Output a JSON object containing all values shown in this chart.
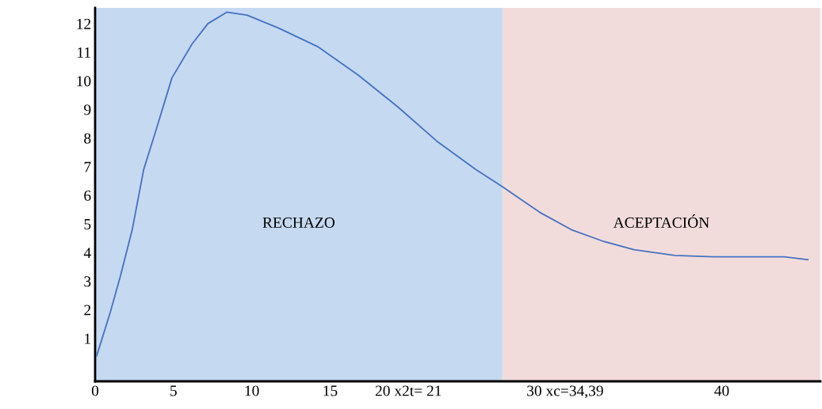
{
  "chart_data": {
    "type": "line",
    "series": [
      {
        "color": "#4472c4",
        "x": [
          0.1,
          0.96,
          1.6,
          2.37,
          3.1,
          3.9,
          4.9,
          6.2,
          7.2,
          8.4,
          9.7,
          11.7,
          14.2,
          16.8,
          19.3,
          21.8,
          24.3,
          26,
          28.4,
          30.4,
          32.4,
          34.4,
          37,
          39.5,
          42,
          44,
          45.5
        ],
        "values": [
          0.39,
          1.9,
          3.15,
          4.8,
          6.9,
          8.3,
          10.1,
          11.3,
          12.0,
          12.4,
          12.3,
          11.85,
          11.2,
          10.2,
          9.1,
          7.9,
          6.9,
          6.3,
          5.4,
          4.8,
          4.4,
          4.1,
          3.9,
          3.85,
          3.85,
          3.85,
          3.75
        ]
      }
    ],
    "xlim": [
      0,
      46.3
    ],
    "ylim": [
      -0.5,
      12.55
    ],
    "xticks": [
      0,
      5,
      10,
      15,
      {
        "value": 20,
        "label": "20 x2t= 21"
      },
      {
        "value": 30,
        "label": "30 xc=34,39"
      },
      40
    ],
    "yticks": [
      1,
      2,
      3,
      4,
      5,
      6,
      7,
      8,
      9,
      10,
      11,
      12
    ],
    "bands": [
      {
        "axis": "x",
        "from": 0,
        "to": 26,
        "label": "RECHAZO",
        "color": "#c5d9f1"
      },
      {
        "axis": "x",
        "from": 26,
        "to": 46.3,
        "label": "ACEPTACIÓN",
        "color": "#f2dcdb"
      }
    ],
    "grid": false,
    "marker": "none",
    "line_style": "solid"
  }
}
